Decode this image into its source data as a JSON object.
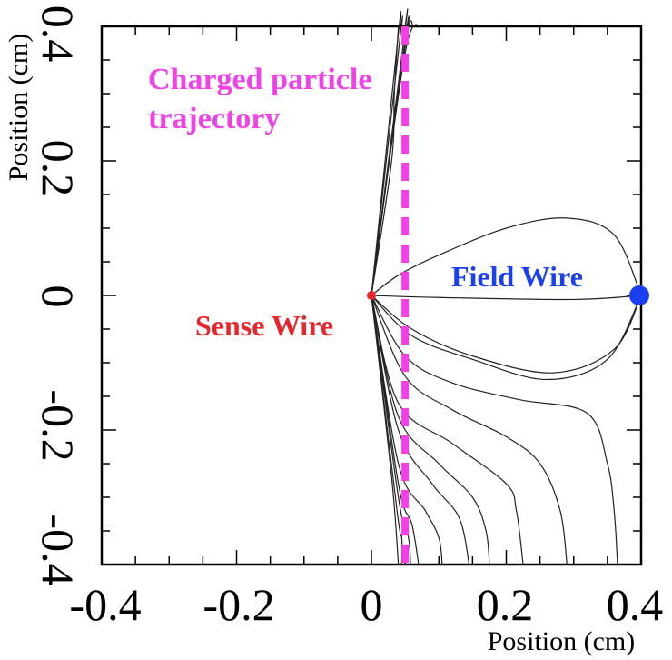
{
  "chart_data": {
    "type": "line",
    "xlabel": "Position (cm)",
    "ylabel": "Position (cm)",
    "xlim": [
      -0.4,
      0.4
    ],
    "ylim": [
      -0.4,
      0.4
    ],
    "x_ticks": [
      "-0.4",
      "-0.2",
      "0",
      "0.2",
      "0.4"
    ],
    "y_ticks": [
      "0.4",
      "0.2",
      "0",
      "-0.2",
      "-0.4"
    ],
    "grid": false,
    "markers": [
      {
        "label": "Sense Wire",
        "x": 0.0,
        "y": 0.0,
        "color": "#e8252b"
      },
      {
        "label": "Field Wire",
        "x": 0.4,
        "y": 0.0,
        "color": "#1a3ff0"
      }
    ],
    "annotations": [
      {
        "text_lines": [
          "Charged particle",
          "trajectory"
        ],
        "color": "#f040e6"
      }
    ],
    "trajectory": {
      "x": 0.05,
      "y_range": [
        -0.4,
        0.4
      ],
      "color": "#f040e6",
      "style": "dashed"
    },
    "field_lines": [
      {
        "points": [
          [
            0,
            0
          ],
          [
            0.05,
            0.36
          ],
          [
            0.075,
            0.4
          ]
        ]
      },
      {
        "points": [
          [
            0,
            0
          ],
          [
            0.05,
            0.37
          ],
          [
            0.062,
            0.4
          ]
        ]
      },
      {
        "points": [
          [
            0,
            0
          ],
          [
            0.05,
            0.38
          ],
          [
            0.055,
            0.4
          ]
        ]
      },
      {
        "points": [
          [
            0,
            0
          ],
          [
            0.05,
            0.395
          ],
          [
            0.05,
            0.4
          ]
        ]
      },
      {
        "points": [
          [
            0,
            0
          ],
          [
            0.042,
            0.38
          ],
          [
            0.045,
            0.4
          ]
        ]
      },
      {
        "points": [
          [
            0,
            0
          ],
          [
            0.04,
            0.39
          ],
          [
            0.043,
            0.4
          ]
        ]
      },
      {
        "points": [
          [
            0,
            0
          ],
          [
            0.03,
            0.2
          ],
          [
            0.034,
            0.3
          ],
          [
            0.04,
            0.4
          ]
        ]
      },
      {
        "points": [
          [
            0,
            0
          ],
          [
            0.04,
            0.03
          ],
          [
            0.1,
            0.06
          ],
          [
            0.2,
            0.1
          ],
          [
            0.29,
            0.115
          ],
          [
            0.36,
            0.09
          ],
          [
            0.4,
            0
          ]
        ]
      },
      {
        "points": [
          [
            0,
            0
          ],
          [
            0.1,
            -0.003
          ],
          [
            0.3,
            -0.006
          ],
          [
            0.4,
            0
          ]
        ]
      },
      {
        "points": [
          [
            0,
            0
          ],
          [
            0.06,
            -0.05
          ],
          [
            0.15,
            -0.09
          ],
          [
            0.27,
            -0.115
          ],
          [
            0.36,
            -0.08
          ],
          [
            0.4,
            0
          ]
        ]
      },
      {
        "points": [
          [
            0,
            0
          ],
          [
            0.06,
            -0.06
          ],
          [
            0.15,
            -0.095
          ],
          [
            0.26,
            -0.125
          ],
          [
            0.35,
            -0.095
          ],
          [
            0.4,
            0
          ]
        ]
      },
      {
        "points": [
          [
            0,
            0
          ],
          [
            0.05,
            -0.09
          ],
          [
            0.12,
            -0.13
          ],
          [
            0.22,
            -0.155
          ],
          [
            0.32,
            -0.175
          ],
          [
            0.35,
            -0.25
          ],
          [
            0.36,
            -0.32
          ],
          [
            0.365,
            -0.4
          ]
        ]
      },
      {
        "points": [
          [
            0,
            0
          ],
          [
            0.05,
            -0.12
          ],
          [
            0.12,
            -0.17
          ],
          [
            0.2,
            -0.21
          ],
          [
            0.25,
            -0.25
          ],
          [
            0.28,
            -0.32
          ],
          [
            0.29,
            -0.4
          ]
        ]
      },
      {
        "points": [
          [
            0,
            0
          ],
          [
            0.04,
            -0.16
          ],
          [
            0.12,
            -0.22
          ],
          [
            0.2,
            -0.28
          ],
          [
            0.215,
            -0.32
          ],
          [
            0.225,
            -0.4
          ]
        ]
      },
      {
        "points": [
          [
            0,
            0
          ],
          [
            0.04,
            -0.18
          ],
          [
            0.1,
            -0.25
          ],
          [
            0.15,
            -0.3
          ],
          [
            0.17,
            -0.35
          ],
          [
            0.175,
            -0.4
          ]
        ]
      },
      {
        "points": [
          [
            0,
            0
          ],
          [
            0.04,
            -0.2
          ],
          [
            0.09,
            -0.28
          ],
          [
            0.13,
            -0.33
          ],
          [
            0.145,
            -0.4
          ]
        ]
      },
      {
        "points": [
          [
            0,
            0
          ],
          [
            0.04,
            -0.25
          ],
          [
            0.08,
            -0.32
          ],
          [
            0.1,
            -0.36
          ],
          [
            0.105,
            -0.4
          ]
        ]
      },
      {
        "points": [
          [
            0,
            0
          ],
          [
            0.04,
            -0.28
          ],
          [
            0.06,
            -0.34
          ],
          [
            0.07,
            -0.4
          ]
        ]
      },
      {
        "points": [
          [
            0,
            0
          ],
          [
            0.04,
            -0.3
          ],
          [
            0.055,
            -0.36
          ],
          [
            0.058,
            -0.4
          ]
        ]
      },
      {
        "points": [
          [
            0,
            0
          ],
          [
            0.038,
            -0.32
          ],
          [
            0.045,
            -0.36
          ],
          [
            0.045,
            -0.4
          ]
        ]
      },
      {
        "points": [
          [
            0,
            0
          ],
          [
            0.03,
            -0.27
          ],
          [
            0.04,
            -0.4
          ]
        ]
      }
    ]
  }
}
